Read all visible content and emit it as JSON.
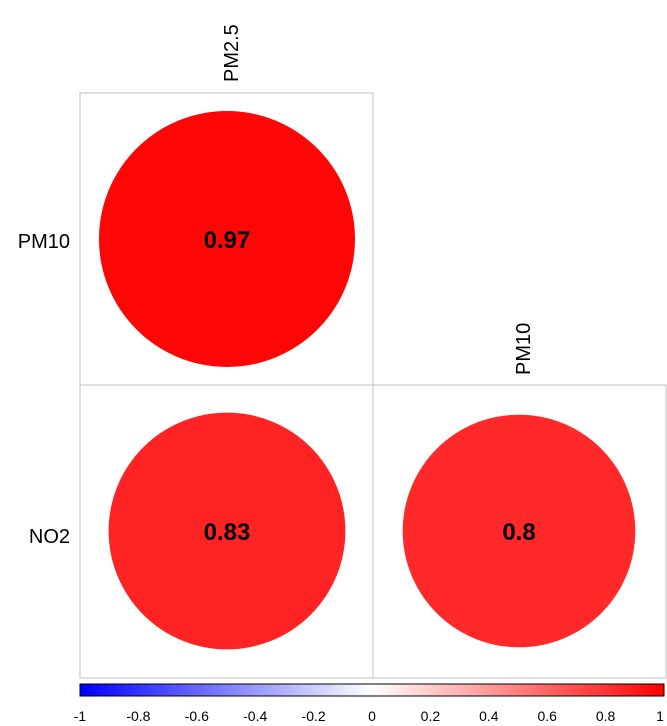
{
  "chart_data": {
    "type": "heatmap",
    "subtype": "correlation-matrix-lower-triangle",
    "column_labels": [
      "PM2.5",
      "PM10"
    ],
    "row_labels": [
      "PM10",
      "NO2"
    ],
    "cells": [
      {
        "row": "PM10",
        "col": "PM2.5",
        "value": 0.97,
        "label": "0.97"
      },
      {
        "row": "NO2",
        "col": "PM2.5",
        "value": 0.83,
        "label": "0.83"
      },
      {
        "row": "NO2",
        "col": "PM10",
        "value": 0.8,
        "label": "0.8"
      }
    ],
    "colorbar": {
      "range": [
        -1,
        1
      ],
      "ticks": [
        "-1",
        "-0.8",
        "-0.6",
        "-0.4",
        "-0.2",
        "0",
        "0.2",
        "0.4",
        "0.6",
        "0.8",
        "1"
      ],
      "colors": {
        "negative": "#0000ff",
        "zero": "#ffffff",
        "positive": "#ff0000"
      }
    },
    "grid": true,
    "legend_position": "bottom"
  }
}
